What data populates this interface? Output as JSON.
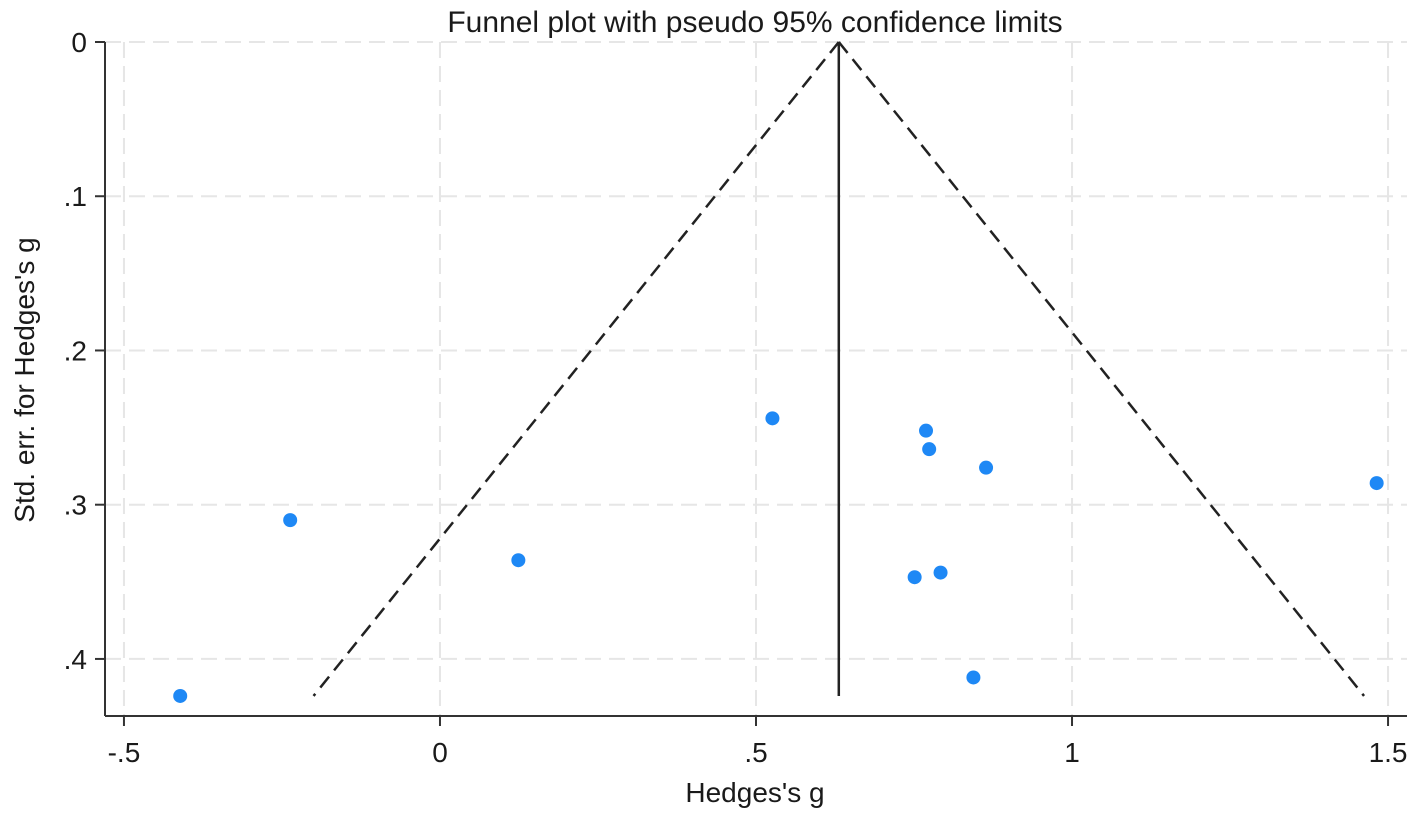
{
  "chart_data": {
    "type": "scatter",
    "title": "Funnel plot with pseudo 95% confidence limits",
    "xlabel": "Hedges's g",
    "ylabel": "Std. err. for Hedges's g",
    "xlim": [
      -0.53,
      1.53
    ],
    "ylim": [
      0,
      0.437
    ],
    "y_reversed": true,
    "grid": true,
    "x_ticks": [
      {
        "value": -0.5,
        "label": "-.5"
      },
      {
        "value": 0,
        "label": "0"
      },
      {
        "value": 0.5,
        "label": ".5"
      },
      {
        "value": 1,
        "label": "1"
      },
      {
        "value": 1.5,
        "label": "1.5"
      }
    ],
    "y_ticks": [
      {
        "value": 0,
        "label": "0"
      },
      {
        "value": 0.1,
        "label": ".1"
      },
      {
        "value": 0.2,
        "label": ".2"
      },
      {
        "value": 0.3,
        "label": ".3"
      },
      {
        "value": 0.4,
        "label": ".4"
      }
    ],
    "pooled_effect": 0.631,
    "max_se": 0.424,
    "ci_multiplier": 1.96,
    "colors": {
      "points": "#1e88f5",
      "funnel": "#222222",
      "grid": "#e6e6e6",
      "axis": "#333333"
    },
    "points": [
      {
        "x": 0.526,
        "y": 0.244
      },
      {
        "x": 0.769,
        "y": 0.252
      },
      {
        "x": 0.774,
        "y": 0.264
      },
      {
        "x": 0.864,
        "y": 0.276
      },
      {
        "x": 1.482,
        "y": 0.286
      },
      {
        "x": -0.237,
        "y": 0.31
      },
      {
        "x": 0.124,
        "y": 0.336
      },
      {
        "x": 0.751,
        "y": 0.347
      },
      {
        "x": 0.792,
        "y": 0.344
      },
      {
        "x": 0.844,
        "y": 0.412
      },
      {
        "x": -0.411,
        "y": 0.424
      }
    ]
  }
}
